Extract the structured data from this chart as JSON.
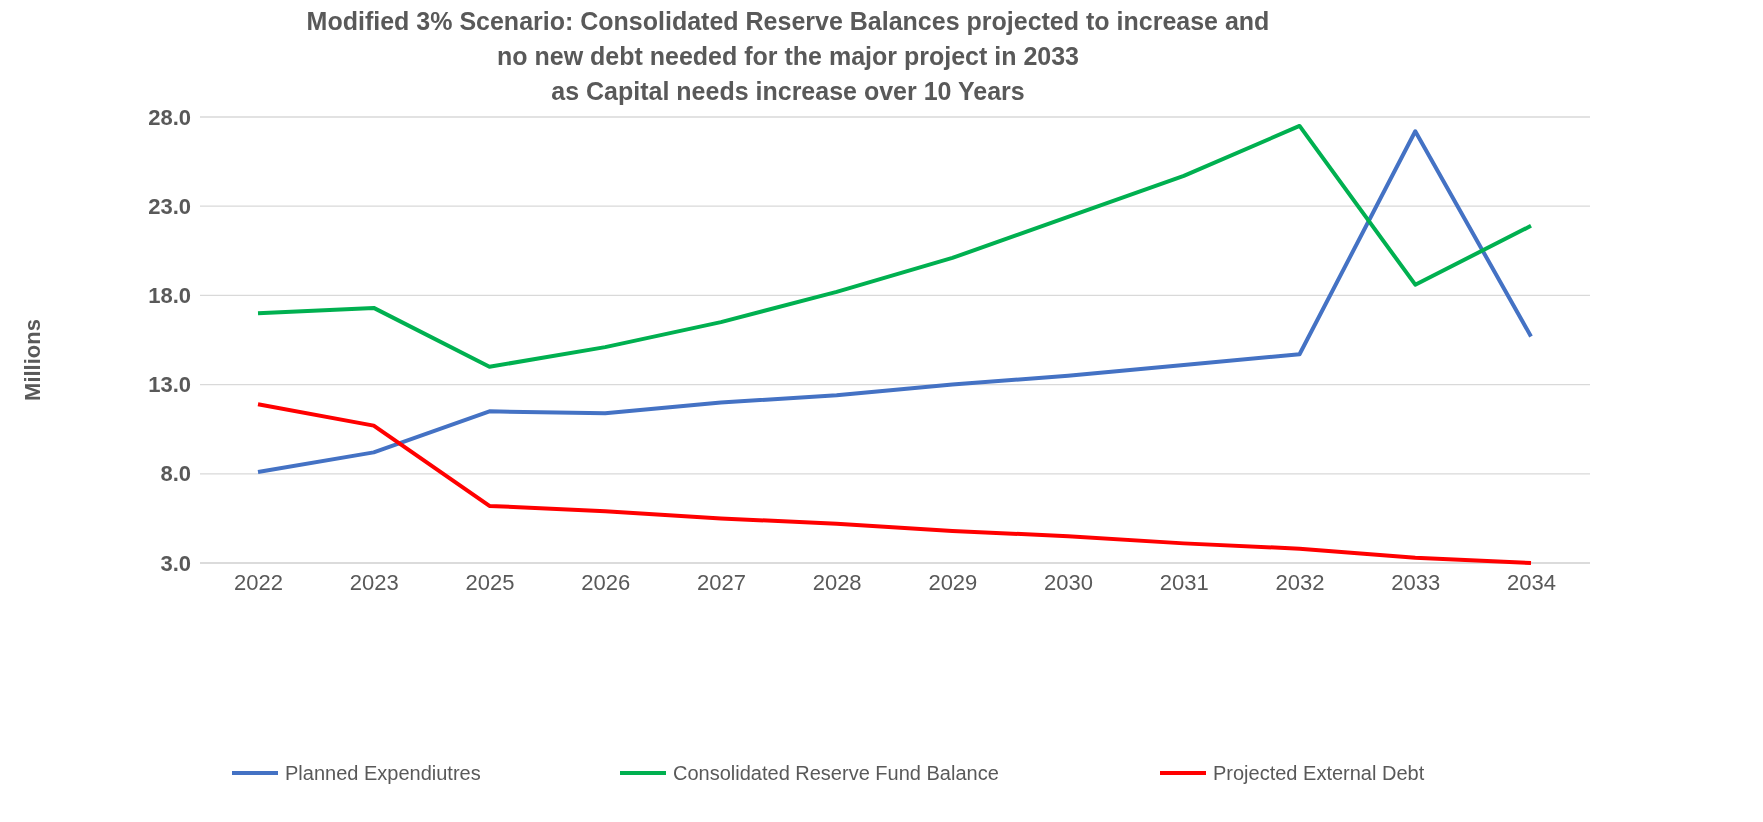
{
  "chart_data": {
    "type": "line",
    "title": "Modified 3% Scenario: Consolidated Reserve Balances projected to increase and\nno new debt needed for the major project in 2033\nas Capital needs increase over 10 Years",
    "ylabel": "Millions",
    "categories": [
      "2022",
      "2023",
      "2025",
      "2026",
      "2027",
      "2028",
      "2029",
      "2030",
      "2031",
      "2032",
      "2033",
      "2034"
    ],
    "series": [
      {
        "name": "Planned Expendiutres",
        "color": "#4472c4",
        "values": [
          8.1,
          9.2,
          11.5,
          11.4,
          12.0,
          12.4,
          13.0,
          13.5,
          14.1,
          14.7,
          27.2,
          15.7
        ]
      },
      {
        "name": "Consolidated Reserve Fund Balance",
        "color": "#00b050",
        "values": [
          17.0,
          17.3,
          14.0,
          15.1,
          16.5,
          18.2,
          20.1,
          22.4,
          24.7,
          27.5,
          18.6,
          21.9
        ]
      },
      {
        "name": "Projected External Debt",
        "color": "#ff0000",
        "values": [
          11.9,
          10.7,
          6.2,
          5.9,
          5.5,
          5.2,
          4.8,
          4.5,
          4.1,
          3.8,
          3.3,
          3.0
        ]
      }
    ],
    "ylim": [
      3,
      28
    ],
    "yticks": [
      {
        "value": 3,
        "label": "3.0"
      },
      {
        "value": 8,
        "label": "8.0"
      },
      {
        "value": 13,
        "label": "13.0"
      },
      {
        "value": 18,
        "label": "18.0"
      },
      {
        "value": 23,
        "label": "23.0"
      },
      {
        "value": 28,
        "label": "28.0"
      }
    ],
    "grid": "y",
    "legend": "bottom",
    "marker": "none",
    "line_style": "solid"
  }
}
